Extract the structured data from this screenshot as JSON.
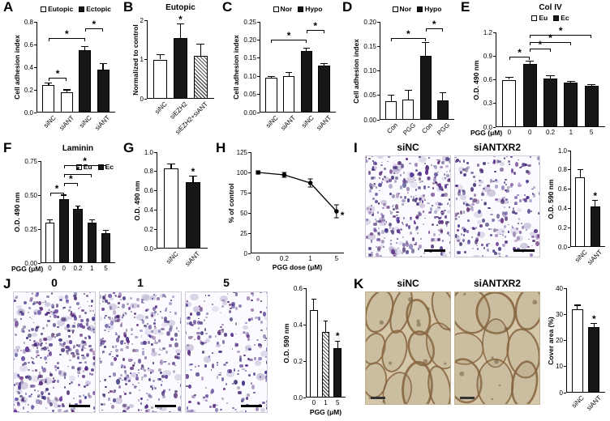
{
  "panels": {
    "A": {
      "label": "A"
    },
    "B": {
      "label": "B"
    },
    "C": {
      "label": "C"
    },
    "D": {
      "label": "D"
    },
    "E": {
      "label": "E"
    },
    "F": {
      "label": "F"
    },
    "G": {
      "label": "G"
    },
    "H": {
      "label": "H"
    },
    "I": {
      "label": "I",
      "images": [
        {
          "caption": "siNC",
          "kind": "transwell",
          "density": 1.0,
          "seed": 11
        },
        {
          "caption": "siANTXR2",
          "kind": "transwell",
          "density": 0.72,
          "seed": 22
        }
      ]
    },
    "J": {
      "label": "J",
      "images": [
        {
          "caption": "0",
          "kind": "transwell",
          "density": 1.0,
          "seed": 31
        },
        {
          "caption": "1",
          "kind": "transwell",
          "density": 0.82,
          "seed": 32
        },
        {
          "caption": "5",
          "kind": "transwell",
          "density": 0.58,
          "seed": 33
        }
      ]
    },
    "K": {
      "label": "K",
      "images": [
        {
          "caption": "siNC",
          "kind": "tubes",
          "mesh": 4,
          "seed": 41
        },
        {
          "caption": "siANTXR2",
          "kind": "tubes",
          "mesh": 3,
          "seed": 42
        }
      ]
    }
  },
  "chart_data": [
    {
      "panel": "A",
      "type": "bar",
      "ylabel": "Cell adhesion index",
      "ylim": [
        0,
        0.8
      ],
      "yticks": [
        "0.0",
        "0.2",
        "0.4",
        "0.6",
        "0.8"
      ],
      "categories": [
        "siNC",
        "siANT",
        "siNC",
        "siANT"
      ],
      "values": [
        0.24,
        0.18,
        0.55,
        0.38
      ],
      "errors": [
        0.02,
        0.02,
        0.03,
        0.05
      ],
      "styles": [
        "white",
        "white",
        "black",
        "black"
      ],
      "tick_rotate": true,
      "legend": {
        "pos": "top",
        "items": [
          {
            "label": "Eutopic",
            "style": "white"
          },
          {
            "label": "Ectopic",
            "style": "black"
          }
        ]
      },
      "sig": [
        {
          "a": 0,
          "b": 1,
          "y": 0.31,
          "label": "*"
        },
        {
          "a": 0,
          "b": 2,
          "y": 0.66,
          "label": "*"
        },
        {
          "a": 2,
          "b": 3,
          "y": 0.745,
          "label": "*"
        }
      ]
    },
    {
      "panel": "B",
      "type": "bar",
      "title": "Eutopic",
      "ylabel": "Normalized to control",
      "ylim": [
        0,
        2
      ],
      "yticks": [
        "0",
        "1",
        "2"
      ],
      "categories": [
        "siNC",
        "siEZH2",
        "siEZH2+siANT"
      ],
      "values": [
        1.0,
        1.55,
        1.1
      ],
      "errors": [
        0.12,
        0.35,
        0.3
      ],
      "styles": [
        "white",
        "black",
        "hatch"
      ],
      "tick_rotate": true,
      "stars": [
        1
      ]
    },
    {
      "panel": "C",
      "type": "bar",
      "ylabel": "Cell adhesion index",
      "ylim": [
        0,
        0.25
      ],
      "yticks": [
        "0.00",
        "0.05",
        "0.10",
        "0.15",
        "0.20",
        "0.25"
      ],
      "categories": [
        "siNC",
        "siANT",
        "siNC",
        "siANT"
      ],
      "values": [
        0.095,
        0.1,
        0.17,
        0.13
      ],
      "errors": [
        0.005,
        0.01,
        0.007,
        0.005
      ],
      "styles": [
        "white",
        "white",
        "black",
        "black"
      ],
      "tick_rotate": true,
      "legend": {
        "pos": "top",
        "items": [
          {
            "label": "Nor",
            "style": "white"
          },
          {
            "label": "Hypo",
            "style": "black"
          }
        ]
      },
      "sig": [
        {
          "a": 0,
          "b": 2,
          "y": 0.2,
          "label": "*"
        },
        {
          "a": 2,
          "b": 3,
          "y": 0.228,
          "label": "*"
        }
      ]
    },
    {
      "panel": "D",
      "type": "bar",
      "ylabel": "Cell adhesion index",
      "ylim": [
        0,
        0.2
      ],
      "yticks": [
        "0.00",
        "0.05",
        "0.10",
        "0.15",
        "0.20"
      ],
      "categories": [
        "Con",
        "PGG",
        "Con",
        "PGG"
      ],
      "values": [
        0.038,
        0.042,
        0.13,
        0.04
      ],
      "errors": [
        0.012,
        0.018,
        0.028,
        0.015
      ],
      "styles": [
        "white",
        "white",
        "black",
        "black"
      ],
      "tick_rotate": true,
      "legend": {
        "pos": "top",
        "items": [
          {
            "label": "Nor",
            "style": "white"
          },
          {
            "label": "Hypo",
            "style": "black"
          }
        ]
      },
      "sig": [
        {
          "a": 0,
          "b": 2,
          "y": 0.167,
          "label": "*"
        },
        {
          "a": 2,
          "b": 3,
          "y": 0.186,
          "label": "*"
        }
      ]
    },
    {
      "panel": "E",
      "type": "bar",
      "title": "Col IV",
      "ylabel": "O.D. 490 nm",
      "ylim": [
        0,
        1.2
      ],
      "yticks": [
        "0.0",
        "0.3",
        "0.6",
        "0.9",
        "1.2"
      ],
      "categories": [
        "0",
        "0",
        "0.2",
        "1",
        "5"
      ],
      "values": [
        0.6,
        0.8,
        0.62,
        0.56,
        0.52
      ],
      "errors": [
        0.03,
        0.04,
        0.03,
        0.02,
        0.02
      ],
      "styles": [
        "white",
        "black",
        "black",
        "black",
        "black"
      ],
      "legend": {
        "pos": "top",
        "items": [
          {
            "label": "Eu",
            "style": "white"
          },
          {
            "label": "Ec",
            "style": "black"
          }
        ]
      },
      "xlabel": "PGG (μM)",
      "xlabel_inline": true,
      "sig": [
        {
          "a": 0,
          "b": 1,
          "y": 0.89,
          "label": "*"
        },
        {
          "a": 1,
          "b": 2,
          "y": 0.99,
          "label": "*"
        },
        {
          "a": 1,
          "b": 3,
          "y": 1.08,
          "label": "*"
        },
        {
          "a": 1,
          "b": 4,
          "y": 1.17,
          "label": "*"
        }
      ]
    },
    {
      "panel": "F",
      "type": "bar",
      "title": "Laminin",
      "ylabel": "O.D. 490 nm",
      "ylim": [
        0,
        0.75
      ],
      "yticks": [
        "0.00",
        "0.25",
        "0.50",
        "0.75"
      ],
      "categories": [
        "0",
        "0",
        "0.2",
        "1",
        "5"
      ],
      "values": [
        0.3,
        0.47,
        0.4,
        0.3,
        0.22
      ],
      "errors": [
        0.02,
        0.03,
        0.02,
        0.02,
        0.02
      ],
      "styles": [
        "white",
        "black",
        "black",
        "black",
        "black"
      ],
      "legend": {
        "pos": "inside-top-right",
        "items": [
          {
            "label": "Eu",
            "style": "white"
          },
          {
            "label": "Ec",
            "style": "black"
          }
        ]
      },
      "xlabel": "PGG (μM)",
      "xlabel_inline": true,
      "sig": [
        {
          "a": 0,
          "b": 1,
          "y": 0.52,
          "label": "*"
        },
        {
          "a": 1,
          "b": 2,
          "y": 0.59,
          "label": "*"
        },
        {
          "a": 1,
          "b": 3,
          "y": 0.655,
          "label": "*"
        },
        {
          "a": 1,
          "b": 4,
          "y": 0.72,
          "label": "*"
        }
      ]
    },
    {
      "panel": "G",
      "type": "bar",
      "ylabel": "O.D. 490 nm",
      "ylim": [
        0,
        1
      ],
      "yticks": [
        "0.0",
        "0.2",
        "0.4",
        "0.6",
        "0.8",
        "1.0"
      ],
      "categories": [
        "siNC",
        "siANT"
      ],
      "values": [
        0.83,
        0.69
      ],
      "errors": [
        0.05,
        0.06
      ],
      "styles": [
        "white",
        "black"
      ],
      "tick_rotate": true,
      "stars": [
        1
      ]
    },
    {
      "panel": "H",
      "type": "line",
      "ylabel": "% of control",
      "ylim": [
        0,
        125
      ],
      "yticks": [
        "0",
        "25",
        "50",
        "75",
        "100",
        "125"
      ],
      "categories": [
        "0",
        "0.2",
        "1",
        "5"
      ],
      "values": [
        100,
        97,
        87,
        52
      ],
      "errors": [
        2,
        3,
        5,
        8
      ],
      "xlabel": "PGG dose (μM)",
      "stars": [
        3
      ]
    },
    {
      "panel": "I",
      "type": "bar",
      "ylabel": "O.D. 590 nm",
      "ylim": [
        0,
        1
      ],
      "yticks": [
        "0.0",
        "0.2",
        "0.4",
        "0.6",
        "0.8",
        "1.0"
      ],
      "categories": [
        "siNC",
        "siANT"
      ],
      "values": [
        0.72,
        0.42
      ],
      "errors": [
        0.08,
        0.06
      ],
      "styles": [
        "white",
        "black"
      ],
      "tick_rotate": true,
      "stars": [
        1
      ]
    },
    {
      "panel": "J",
      "type": "bar",
      "ylabel": "O.D. 590 nm",
      "ylim": [
        0,
        0.6
      ],
      "yticks": [
        "0.0",
        "0.2",
        "0.4",
        "0.6"
      ],
      "categories": [
        "0",
        "1",
        "5"
      ],
      "values": [
        0.48,
        0.36,
        0.27
      ],
      "errors": [
        0.06,
        0.06,
        0.04
      ],
      "styles": [
        "white",
        "hatch",
        "black"
      ],
      "stars": [
        2
      ],
      "xlabel": "PGG (μM)"
    },
    {
      "panel": "K",
      "type": "bar",
      "ylabel": "Cover area (%)",
      "ylim": [
        0,
        40
      ],
      "yticks": [
        "0",
        "10",
        "20",
        "30",
        "40"
      ],
      "categories": [
        "siNC",
        "siANT"
      ],
      "values": [
        32,
        25
      ],
      "errors": [
        1.5,
        1.5
      ],
      "styles": [
        "white",
        "black"
      ],
      "tick_rotate": true,
      "stars": [
        1
      ]
    }
  ]
}
